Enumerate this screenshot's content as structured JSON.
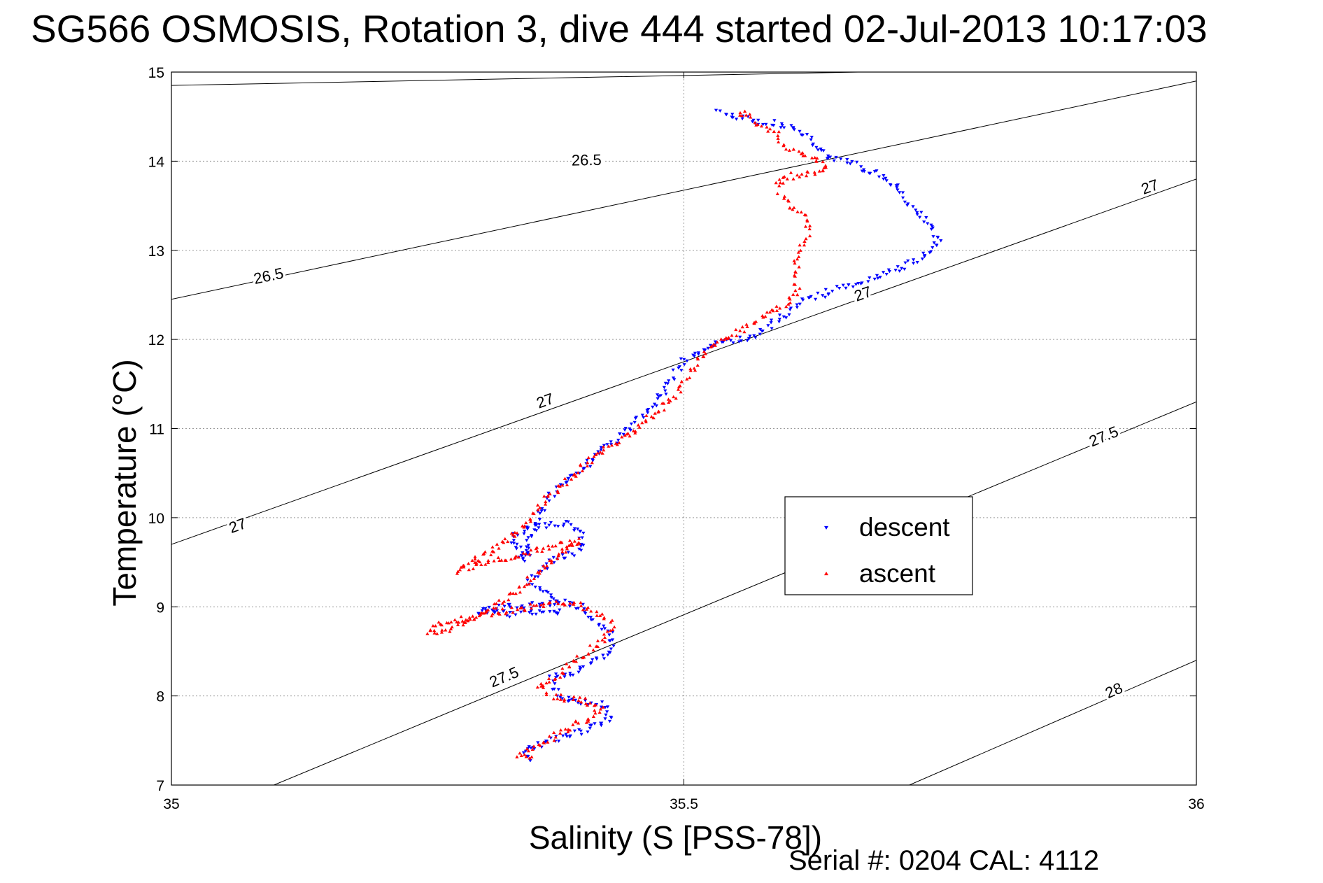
{
  "title": "SG566 OSMOSIS, Rotation 3, dive 444 started 02-Jul-2013 10:17:03",
  "serial_text": "Serial #: 0204  CAL: 4112",
  "colors": {
    "descent": "#0000ff",
    "ascent": "#ff0000",
    "axes": "#000000",
    "grid": "#9a9a9a"
  },
  "chart_data": {
    "type": "scatter",
    "title": "SG566 OSMOSIS, Rotation 3, dive 444 started 02-Jul-2013 10:17:03",
    "xlabel": "Salinity (S [PSS-78])",
    "ylabel": "Temperature (°C)",
    "xlim": [
      35,
      36
    ],
    "ylim": [
      7,
      15
    ],
    "x_ticks": [
      35,
      35.5,
      36
    ],
    "x_tick_labels": [
      "35",
      "35.5",
      "36"
    ],
    "y_ticks": [
      7,
      8,
      9,
      10,
      11,
      12,
      13,
      14,
      15
    ],
    "y_tick_labels": [
      "7",
      "8",
      "9",
      "10",
      "11",
      "12",
      "13",
      "14",
      "15"
    ],
    "grid": true,
    "legend_position": "right-center",
    "series": [
      {
        "name": "descent",
        "marker": "triangle-down",
        "trace": [
          [
            35.353,
            7.27
          ],
          [
            35.345,
            7.32
          ],
          [
            35.345,
            7.4
          ],
          [
            35.37,
            7.5
          ],
          [
            35.4,
            7.6
          ],
          [
            35.43,
            7.75
          ],
          [
            35.42,
            7.9
          ],
          [
            35.39,
            7.95
          ],
          [
            35.375,
            8.05
          ],
          [
            35.37,
            8.2
          ],
          [
            35.4,
            8.3
          ],
          [
            35.43,
            8.5
          ],
          [
            35.43,
            8.7
          ],
          [
            35.41,
            8.85
          ],
          [
            35.4,
            9.0
          ],
          [
            35.38,
            9.05
          ],
          [
            35.33,
            9.0
          ],
          [
            35.3,
            8.95
          ],
          [
            35.33,
            8.92
          ],
          [
            35.38,
            8.95
          ],
          [
            35.37,
            9.15
          ],
          [
            35.35,
            9.3
          ],
          [
            35.37,
            9.5
          ],
          [
            35.4,
            9.65
          ],
          [
            35.4,
            9.8
          ],
          [
            35.39,
            9.93
          ],
          [
            35.35,
            9.9
          ],
          [
            35.33,
            9.75
          ],
          [
            35.35,
            9.6
          ],
          [
            35.34,
            9.5
          ],
          [
            35.36,
            10.05
          ],
          [
            35.37,
            10.25
          ],
          [
            35.385,
            10.4
          ],
          [
            35.4,
            10.55
          ],
          [
            35.42,
            10.75
          ],
          [
            35.44,
            10.95
          ],
          [
            35.46,
            11.15
          ],
          [
            35.48,
            11.4
          ],
          [
            35.49,
            11.6
          ],
          [
            35.5,
            11.75
          ],
          [
            35.53,
            11.95
          ],
          [
            35.57,
            12.05
          ],
          [
            35.595,
            12.25
          ],
          [
            35.62,
            12.45
          ],
          [
            35.66,
            12.6
          ],
          [
            35.7,
            12.75
          ],
          [
            35.73,
            12.9
          ],
          [
            35.75,
            13.1
          ],
          [
            35.74,
            13.3
          ],
          [
            35.72,
            13.5
          ],
          [
            35.71,
            13.7
          ],
          [
            35.69,
            13.85
          ],
          [
            35.67,
            13.95
          ],
          [
            35.66,
            14.0
          ],
          [
            35.64,
            14.05
          ],
          [
            35.63,
            14.15
          ],
          [
            35.62,
            14.3
          ],
          [
            35.6,
            14.4
          ],
          [
            35.57,
            14.45
          ],
          [
            35.55,
            14.5
          ],
          [
            35.53,
            14.55
          ]
        ]
      },
      {
        "name": "ascent",
        "marker": "triangle-up",
        "trace": [
          [
            35.35,
            7.3
          ],
          [
            35.34,
            7.35
          ],
          [
            35.36,
            7.45
          ],
          [
            35.38,
            7.6
          ],
          [
            35.4,
            7.7
          ],
          [
            35.42,
            7.85
          ],
          [
            35.4,
            7.95
          ],
          [
            35.37,
            8.0
          ],
          [
            35.36,
            8.1
          ],
          [
            35.38,
            8.25
          ],
          [
            35.4,
            8.45
          ],
          [
            35.42,
            8.6
          ],
          [
            35.43,
            8.8
          ],
          [
            35.41,
            8.95
          ],
          [
            35.39,
            9.05
          ],
          [
            35.35,
            9.0
          ],
          [
            35.3,
            8.9
          ],
          [
            35.26,
            8.8
          ],
          [
            35.25,
            8.7
          ],
          [
            35.27,
            8.75
          ],
          [
            35.31,
            8.95
          ],
          [
            35.34,
            9.2
          ],
          [
            35.36,
            9.4
          ],
          [
            35.38,
            9.6
          ],
          [
            35.4,
            9.75
          ],
          [
            35.38,
            9.7
          ],
          [
            35.33,
            9.55
          ],
          [
            35.29,
            9.45
          ],
          [
            35.28,
            9.4
          ],
          [
            35.3,
            9.55
          ],
          [
            35.33,
            9.75
          ],
          [
            35.35,
            9.95
          ],
          [
            35.36,
            10.15
          ],
          [
            35.38,
            10.35
          ],
          [
            35.4,
            10.55
          ],
          [
            35.42,
            10.75
          ],
          [
            35.45,
            10.95
          ],
          [
            35.47,
            11.15
          ],
          [
            35.49,
            11.35
          ],
          [
            35.5,
            11.55
          ],
          [
            35.51,
            11.7
          ],
          [
            35.52,
            11.85
          ],
          [
            35.54,
            12.0
          ],
          [
            35.57,
            12.2
          ],
          [
            35.6,
            12.4
          ],
          [
            35.61,
            12.55
          ],
          [
            35.61,
            12.75
          ],
          [
            35.61,
            12.95
          ],
          [
            35.62,
            13.15
          ],
          [
            35.62,
            13.35
          ],
          [
            35.6,
            13.55
          ],
          [
            35.59,
            13.75
          ],
          [
            35.61,
            13.85
          ],
          [
            35.64,
            13.9
          ],
          [
            35.63,
            14.0
          ],
          [
            35.6,
            14.15
          ],
          [
            35.59,
            14.3
          ],
          [
            35.57,
            14.45
          ],
          [
            35.56,
            14.53
          ],
          [
            35.55,
            14.48
          ]
        ]
      }
    ],
    "sigma_contours": [
      {
        "label": "26.5",
        "segments": [
          [
            35,
            14.85
          ],
          [
            35.67,
            15.0
          ]
        ],
        "label_points": [
          [
            35.405,
            14.0
          ]
        ]
      },
      {
        "label": "26.5",
        "segments": [
          [
            35,
            12.45
          ],
          [
            36,
            14.9
          ]
        ],
        "label_points": [
          [
            35.095,
            12.7
          ]
        ]
      },
      {
        "label": "27",
        "segments": [
          [
            35,
            9.7
          ],
          [
            36,
            13.8
          ]
        ],
        "label_points": [
          [
            35.065,
            9.9
          ],
          [
            35.365,
            11.3
          ],
          [
            35.675,
            12.5
          ],
          [
            35.955,
            13.7
          ]
        ]
      },
      {
        "label": "27.5",
        "segments": [
          [
            35.1,
            7.0
          ],
          [
            36,
            11.3
          ]
        ],
        "label_points": [
          [
            35.325,
            8.2
          ],
          [
            35.91,
            10.9
          ]
        ]
      },
      {
        "label": "28",
        "segments": [
          [
            35.72,
            7.0
          ],
          [
            36,
            8.4
          ]
        ],
        "label_points": [
          [
            35.92,
            8.05
          ]
        ]
      }
    ]
  }
}
